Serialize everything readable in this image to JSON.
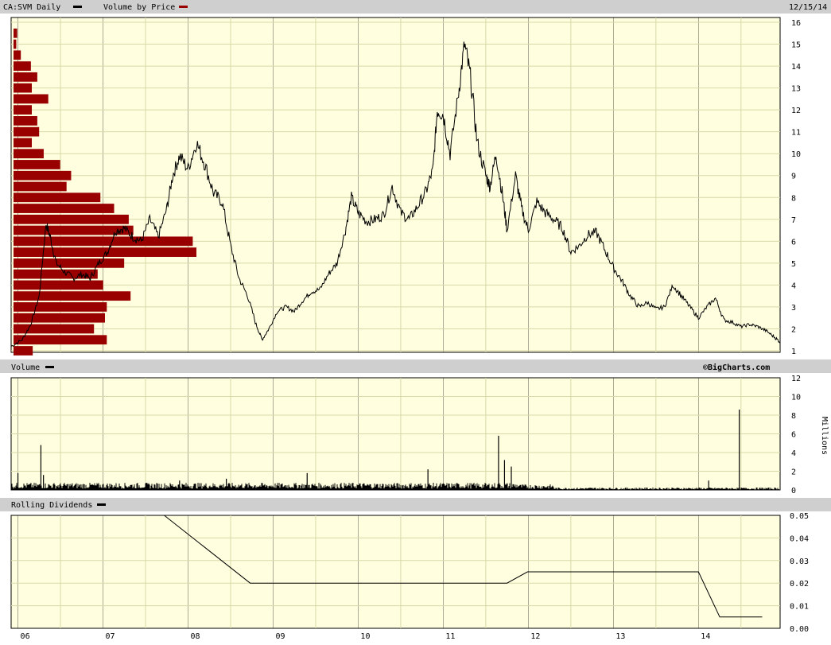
{
  "header": {
    "symbol_label": "CA:SVM Daily",
    "vbp_label": "Volume by Price",
    "date": "12/15/14"
  },
  "volume_header": {
    "label": "Volume",
    "credit": "©BigCharts.com"
  },
  "dividend_header": {
    "label": "Rolling Dividends"
  },
  "colors": {
    "plot_bg": "#ffffe0",
    "grid": "#d8d8a8",
    "header_bg": "#cfcfcf",
    "vbp_bar": "#990000",
    "line": "#000000"
  },
  "chart_data": [
    {
      "type": "line",
      "name": "price",
      "x_ticks": [
        "06",
        "07",
        "08",
        "09",
        "10",
        "11",
        "12",
        "13",
        "14"
      ],
      "x_domain": [
        2005.92,
        2014.96
      ],
      "ylim": [
        1,
        16
      ],
      "y_ticks": [
        1,
        2,
        3,
        4,
        5,
        6,
        7,
        8,
        9,
        10,
        11,
        12,
        13,
        14,
        15,
        16
      ],
      "points": [
        [
          2005.92,
          1.2
        ],
        [
          2006.05,
          1.5
        ],
        [
          2006.15,
          2.2
        ],
        [
          2006.25,
          3.5
        ],
        [
          2006.33,
          6.8
        ],
        [
          2006.38,
          6.2
        ],
        [
          2006.45,
          5.0
        ],
        [
          2006.55,
          4.6
        ],
        [
          2006.65,
          4.3
        ],
        [
          2006.75,
          4.5
        ],
        [
          2006.85,
          4.3
        ],
        [
          2006.95,
          5.0
        ],
        [
          2007.05,
          5.5
        ],
        [
          2007.15,
          6.5
        ],
        [
          2007.25,
          6.6
        ],
        [
          2007.35,
          6.2
        ],
        [
          2007.45,
          6.0
        ],
        [
          2007.55,
          7.0
        ],
        [
          2007.65,
          6.2
        ],
        [
          2007.75,
          7.5
        ],
        [
          2007.82,
          9.0
        ],
        [
          2007.9,
          9.9
        ],
        [
          2008.0,
          9.3
        ],
        [
          2008.1,
          10.5
        ],
        [
          2008.2,
          9.5
        ],
        [
          2008.3,
          8.2
        ],
        [
          2008.4,
          7.8
        ],
        [
          2008.5,
          5.8
        ],
        [
          2008.6,
          4.3
        ],
        [
          2008.7,
          3.5
        ],
        [
          2008.8,
          2.2
        ],
        [
          2008.87,
          1.5
        ],
        [
          2008.95,
          2.0
        ],
        [
          2009.05,
          2.8
        ],
        [
          2009.15,
          3.0
        ],
        [
          2009.25,
          2.8
        ],
        [
          2009.35,
          3.3
        ],
        [
          2009.45,
          3.7
        ],
        [
          2009.55,
          3.8
        ],
        [
          2009.65,
          4.5
        ],
        [
          2009.75,
          5.0
        ],
        [
          2009.85,
          6.5
        ],
        [
          2009.92,
          8.0
        ],
        [
          2010.0,
          7.3
        ],
        [
          2010.1,
          6.9
        ],
        [
          2010.2,
          7.0
        ],
        [
          2010.3,
          7.2
        ],
        [
          2010.4,
          8.5
        ],
        [
          2010.5,
          7.3
        ],
        [
          2010.6,
          7.0
        ],
        [
          2010.7,
          7.6
        ],
        [
          2010.8,
          8.3
        ],
        [
          2010.88,
          9.3
        ],
        [
          2010.93,
          12.0
        ],
        [
          2011.0,
          11.8
        ],
        [
          2011.08,
          10.0
        ],
        [
          2011.18,
          12.8
        ],
        [
          2011.25,
          15.0
        ],
        [
          2011.32,
          13.5
        ],
        [
          2011.4,
          10.5
        ],
        [
          2011.5,
          9.0
        ],
        [
          2011.55,
          8.5
        ],
        [
          2011.62,
          10.0
        ],
        [
          2011.7,
          8.0
        ],
        [
          2011.75,
          6.5
        ],
        [
          2011.85,
          9.0
        ],
        [
          2011.92,
          7.5
        ],
        [
          2012.0,
          6.5
        ],
        [
          2012.1,
          7.8
        ],
        [
          2012.2,
          7.3
        ],
        [
          2012.3,
          7.0
        ],
        [
          2012.4,
          6.6
        ],
        [
          2012.5,
          5.5
        ],
        [
          2012.6,
          5.8
        ],
        [
          2012.7,
          6.3
        ],
        [
          2012.8,
          6.4
        ],
        [
          2012.9,
          5.6
        ],
        [
          2013.0,
          4.8
        ],
        [
          2013.1,
          4.2
        ],
        [
          2013.2,
          3.5
        ],
        [
          2013.3,
          3.0
        ],
        [
          2013.4,
          3.2
        ],
        [
          2013.5,
          2.9
        ],
        [
          2013.6,
          3.0
        ],
        [
          2013.7,
          4.0
        ],
        [
          2013.8,
          3.5
        ],
        [
          2013.9,
          3.0
        ],
        [
          2014.0,
          2.5
        ],
        [
          2014.1,
          3.0
        ],
        [
          2014.2,
          3.4
        ],
        [
          2014.3,
          2.4
        ],
        [
          2014.4,
          2.3
        ],
        [
          2014.5,
          2.1
        ],
        [
          2014.6,
          2.2
        ],
        [
          2014.7,
          2.1
        ],
        [
          2014.8,
          1.9
        ],
        [
          2014.9,
          1.6
        ],
        [
          2014.96,
          1.4
        ]
      ]
    },
    {
      "type": "bar",
      "name": "volume_by_price",
      "price_levels": [
        15.5,
        15,
        14.5,
        14,
        13.5,
        13,
        12.5,
        12,
        11.5,
        11,
        10.5,
        10,
        9.5,
        9,
        8.5,
        8,
        7.5,
        7,
        6.5,
        6,
        5.5,
        5,
        4.5,
        4,
        3.5,
        3,
        2.5,
        2,
        1.5,
        1
      ],
      "relative_volumes": [
        0.02,
        0.015,
        0.04,
        0.095,
        0.13,
        0.1,
        0.19,
        0.1,
        0.13,
        0.14,
        0.1,
        0.165,
        0.255,
        0.315,
        0.29,
        0.475,
        0.55,
        0.63,
        0.655,
        0.98,
        1.0,
        0.605,
        0.46,
        0.49,
        0.64,
        0.51,
        0.5,
        0.44,
        0.51,
        0.105
      ]
    },
    {
      "type": "bar",
      "name": "volume",
      "ylabel": "Millions",
      "ylim": [
        0,
        12
      ],
      "y_ticks": [
        0,
        2,
        4,
        6,
        8,
        10,
        12
      ],
      "spikes": [
        [
          2006.0,
          1.8
        ],
        [
          2006.27,
          4.8
        ],
        [
          2006.3,
          1.6
        ],
        [
          2007.9,
          1.0
        ],
        [
          2008.45,
          1.2
        ],
        [
          2009.4,
          1.8
        ],
        [
          2010.82,
          2.2
        ],
        [
          2011.65,
          5.8
        ],
        [
          2011.72,
          3.2
        ],
        [
          2011.8,
          2.5
        ],
        [
          2014.12,
          1.0
        ],
        [
          2014.48,
          8.6
        ]
      ]
    },
    {
      "type": "line",
      "name": "rolling_dividends",
      "ylim": [
        0,
        0.05
      ],
      "y_ticks": [
        "0.00",
        "0.01",
        "0.02",
        "0.03",
        "0.04",
        "0.05"
      ],
      "points": [
        [
          2007.72,
          0.05
        ],
        [
          2008.73,
          0.02
        ],
        [
          2011.75,
          0.02
        ],
        [
          2011.99,
          0.025
        ],
        [
          2014.0,
          0.025
        ],
        [
          2014.25,
          0.005
        ],
        [
          2014.75,
          0.005
        ]
      ]
    }
  ]
}
